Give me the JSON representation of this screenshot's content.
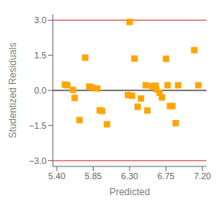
{
  "chart_data": {
    "type": "scatter",
    "xlabel": "Predicted",
    "ylabel": "Studentized Residuals",
    "x": [
      5.5,
      5.53,
      5.6,
      5.62,
      5.68,
      5.75,
      5.8,
      5.83,
      5.9,
      5.93,
      5.96,
      6.02,
      6.3,
      6.28,
      6.33,
      6.36,
      6.4,
      6.44,
      6.5,
      6.52,
      6.58,
      6.62,
      6.63,
      6.67,
      6.7,
      6.75,
      6.77,
      6.8,
      6.83,
      6.87,
      6.9,
      7.1,
      7.15
    ],
    "values": [
      0.25,
      0.22,
      0.02,
      -0.32,
      -1.27,
      1.4,
      0.16,
      0.13,
      0.08,
      -0.85,
      -0.88,
      -1.45,
      2.93,
      -0.2,
      -0.23,
      1.36,
      -0.7,
      -0.35,
      0.22,
      -0.86,
      0.18,
      0.2,
      0.05,
      -0.1,
      -0.3,
      1.35,
      0.22,
      -0.67,
      -0.67,
      -1.4,
      0.22,
      1.72,
      0.22
    ],
    "color": "#FFA500",
    "marker": "square",
    "xlim": [
      5.35,
      7.25
    ],
    "ylim": [
      -3.25,
      3.25
    ],
    "xticks": [
      {
        "value": 5.4,
        "label": "5.40"
      },
      {
        "value": 5.85,
        "label": "5.85"
      },
      {
        "value": 6.3,
        "label": "6.30"
      },
      {
        "value": 6.75,
        "label": "6.75"
      },
      {
        "value": 7.2,
        "label": "7.20"
      }
    ],
    "yticks": [
      {
        "value": -3.0,
        "label": "−3.0"
      },
      {
        "value": -1.5,
        "label": "−1.5"
      },
      {
        "value": 0.0,
        "label": "0.0"
      },
      {
        "value": 1.5,
        "label": "1.5"
      },
      {
        "value": 3.0,
        "label": "3.0"
      }
    ],
    "hlines": [
      {
        "value": 3.0,
        "color": "#E87070"
      },
      {
        "value": -3.0,
        "color": "#E87070"
      },
      {
        "value": 0.0,
        "color": "#505050"
      }
    ],
    "grid": false
  }
}
